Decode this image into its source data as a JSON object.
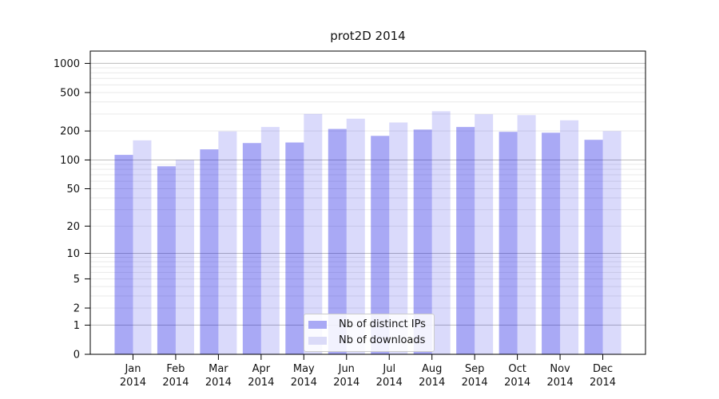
{
  "chart_data": {
    "type": "bar",
    "title": "prot2D 2014",
    "xlabel": "",
    "ylabel": "",
    "yscale": "log1p",
    "ylim": [
      0,
      1340
    ],
    "grid": "horizontal; major gridlines at 1, 10, 100, 1000; faint minor gridlines at 2-9 per decade",
    "legend_position": "lower center",
    "background_color": "#ffffff",
    "categories": [
      "Jan 2014",
      "Feb 2014",
      "Mar 2014",
      "Apr 2014",
      "May 2014",
      "Jun 2014",
      "Jul 2014",
      "Aug 2014",
      "Sep 2014",
      "Oct 2014",
      "Nov 2014",
      "Dec 2014"
    ],
    "series": [
      {
        "name": "Nb of distinct IPs",
        "color": "#a9a9f5",
        "bar_fill": "rgba(9,9,226,0.35)",
        "values": [
          113,
          86,
          129,
          150,
          152,
          210,
          178,
          207,
          220,
          196,
          192,
          162
        ]
      },
      {
        "name": "Nb of downloads",
        "color": "#dbdbf8",
        "bar_fill": "rgba(9,9,226,0.15)",
        "values": [
          160,
          100,
          198,
          220,
          300,
          268,
          245,
          320,
          298,
          292,
          258,
          199
        ]
      }
    ],
    "y_ticks": [
      0,
      1,
      2,
      5,
      10,
      20,
      50,
      100,
      200,
      500,
      1000
    ],
    "axis_color": "#000000",
    "major_grid_color": "#bdbdbd",
    "minor_grid_color": "#e9e9e9"
  }
}
